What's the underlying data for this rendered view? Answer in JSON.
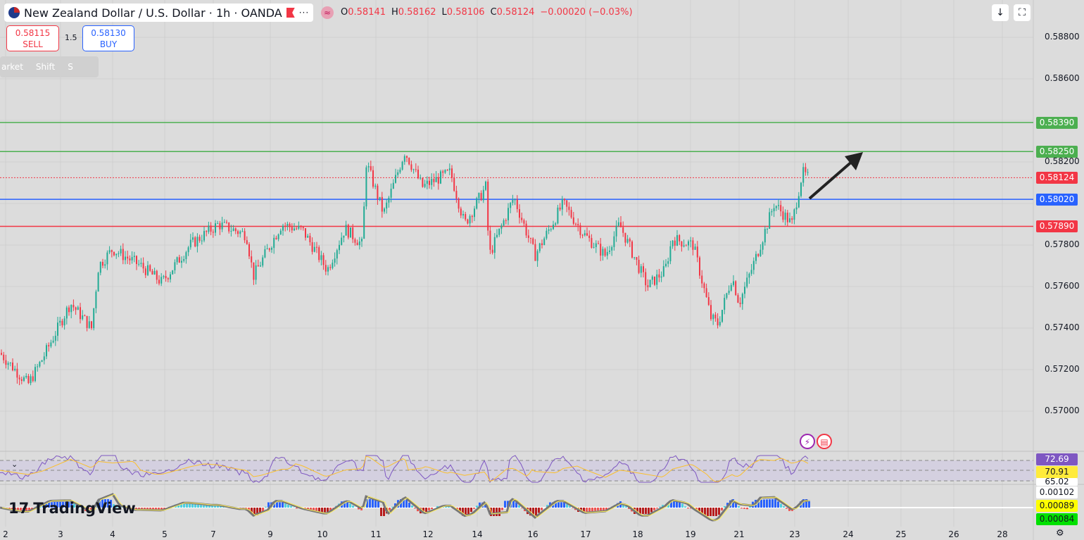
{
  "header": {
    "symbol": "New Zealand Dollar / U.S. Dollar · 1h · OANDA",
    "more_label": "···",
    "wave_label": "≈"
  },
  "ohlc": {
    "o_label": "O",
    "o": "0.58141",
    "h_label": "H",
    "h": "0.58162",
    "l_label": "L",
    "l": "0.58106",
    "c_label": "C",
    "c": "0.58124",
    "change": "−0.00020 (−0.03%)"
  },
  "trade": {
    "sell_price": "0.58115",
    "sell_label": "SELL",
    "spread": "1.5",
    "buy_price": "0.58130",
    "buy_label": "BUY"
  },
  "hint": {
    "items": [
      "arket",
      "Shift",
      "S"
    ]
  },
  "toolbar": {
    "down_icon": "↓",
    "fullscreen_icon": "⛶"
  },
  "colors": {
    "up": "#22ab94",
    "down": "#f23645",
    "support_green": "#4caf50",
    "blue": "#2962ff",
    "red": "#f23645",
    "rsi": "#7e57c2",
    "rsi_ma": "#fbc02d"
  },
  "price_axis": [
    "0.58800",
    "0.58600",
    "0.58200",
    "0.57800",
    "0.57600",
    "0.57400",
    "0.57200",
    "0.57000"
  ],
  "levels": [
    {
      "price": "0.58390",
      "color": "#4caf50"
    },
    {
      "price": "0.58250",
      "color": "#4caf50"
    },
    {
      "price": "0.58124",
      "color": "#f23645",
      "dotted": true
    },
    {
      "price": "0.58020",
      "color": "#2962ff"
    },
    {
      "price": "0.57890",
      "color": "#f23645"
    }
  ],
  "rsi": {
    "value": "72.69",
    "ma": "70.91",
    "lower": "65.02"
  },
  "macd": {
    "v1": "0.00102",
    "v2": "0.00089",
    "v3": "0.00084"
  },
  "time_axis": [
    "2",
    "3",
    "4",
    "5",
    "7",
    "9",
    "10",
    "11",
    "12",
    "14",
    "16",
    "17",
    "18",
    "19",
    "21",
    "23",
    "24",
    "25",
    "26",
    "28"
  ],
  "logo": "TradingView",
  "price_path": [
    [
      0,
      0.5728
    ],
    [
      40,
      0.5713
    ],
    [
      60,
      0.5725
    ],
    [
      100,
      0.5752
    ],
    [
      130,
      0.574
    ],
    [
      140,
      0.577
    ],
    [
      160,
      0.5778
    ],
    [
      200,
      0.577
    ],
    [
      230,
      0.5762
    ],
    [
      270,
      0.578
    ],
    [
      310,
      0.579
    ],
    [
      350,
      0.5785
    ],
    [
      360,
      0.5765
    ],
    [
      400,
      0.579
    ],
    [
      430,
      0.5787
    ],
    [
      465,
      0.5768
    ],
    [
      490,
      0.5788
    ],
    [
      515,
      0.578
    ],
    [
      520,
      0.582
    ],
    [
      545,
      0.5795
    ],
    [
      575,
      0.5825
    ],
    [
      600,
      0.5808
    ],
    [
      640,
      0.5815
    ],
    [
      660,
      0.579
    ],
    [
      690,
      0.5808
    ],
    [
      695,
      0.5775
    ],
    [
      730,
      0.5803
    ],
    [
      760,
      0.5775
    ],
    [
      800,
      0.58
    ],
    [
      830,
      0.5785
    ],
    [
      860,
      0.5775
    ],
    [
      880,
      0.579
    ],
    [
      920,
      0.576
    ],
    [
      945,
      0.5768
    ],
    [
      955,
      0.5783
    ],
    [
      985,
      0.578
    ],
    [
      1010,
      0.5745
    ],
    [
      1020,
      0.5742
    ],
    [
      1040,
      0.5765
    ],
    [
      1050,
      0.5752
    ],
    [
      1075,
      0.5775
    ],
    [
      1100,
      0.58
    ],
    [
      1125,
      0.579
    ],
    [
      1140,
      0.5815
    ],
    [
      1148,
      0.58124
    ]
  ]
}
